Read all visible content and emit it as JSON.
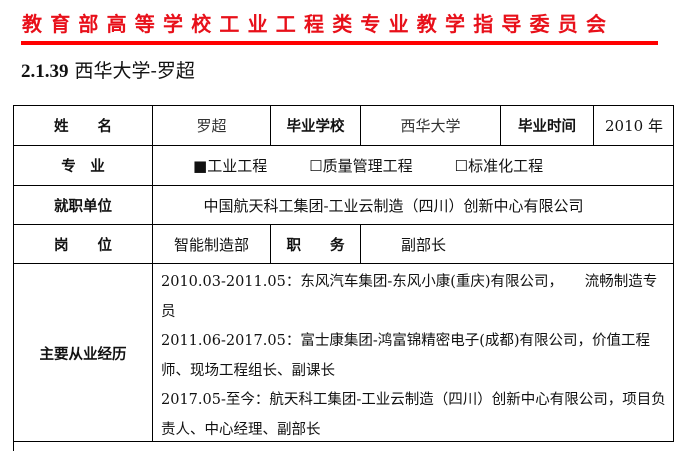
{
  "header": "教育部高等学校工业工程类专业教学指导委员会",
  "section": {
    "number": "2.1.39",
    "title": "西华大学-罗超"
  },
  "table": {
    "name_label": "姓　　名",
    "name": "罗超",
    "school_label": "毕业学校",
    "school": "西华大学",
    "grad_time_label": "毕业时间",
    "grad_time": "2010 年",
    "major_label": "专　业",
    "majors": [
      {
        "mark": "■",
        "label": "工业工程",
        "checked": true
      },
      {
        "mark": "☐",
        "label": "质量管理工程",
        "checked": false
      },
      {
        "mark": "☐",
        "label": "标准化工程",
        "checked": false
      }
    ],
    "employer_label": "就职单位",
    "employer": "中国航天科工集团-工业云制造（四川）创新中心有限公司",
    "post_label": "岗　　位",
    "post": "智能制造部",
    "duty_label": "职　　务",
    "duty": "副部长",
    "experience_label": "主要从业经历",
    "experience": [
      "2010.03-2011.05：东风汽车集团-东风小康(重庆)有限公司，　　流畅制造专员",
      "2011.06-2017.05：富士康集团-鸿富锦精密电子(成都)有限公司，价值工程师、现场工程组长、副课长",
      "2017.05-至今：航天科工集团-工业云制造（四川）创新中心有限公司，项目负责人、中心经理、副部长"
    ]
  }
}
